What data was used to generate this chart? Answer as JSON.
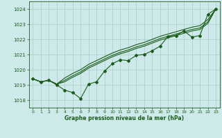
{
  "title": "Graphe pression niveau de la mer (hPa)",
  "bg_color": "#cde9e9",
  "grid_color": "#b0d0d0",
  "line_color": "#1a5c1a",
  "xlim": [
    -0.5,
    23.5
  ],
  "ylim": [
    1017.5,
    1024.5
  ],
  "yticks": [
    1018,
    1019,
    1020,
    1021,
    1022,
    1023,
    1024
  ],
  "xticks": [
    0,
    1,
    2,
    3,
    4,
    5,
    6,
    7,
    8,
    9,
    10,
    11,
    12,
    13,
    14,
    15,
    16,
    17,
    18,
    19,
    20,
    21,
    22,
    23
  ],
  "series": {
    "line_jagged": [
      1019.4,
      1019.2,
      1019.3,
      1019.0,
      1018.65,
      1018.5,
      1018.1,
      1019.05,
      1019.2,
      1019.9,
      1020.4,
      1020.65,
      1020.6,
      1020.95,
      1021.0,
      1021.25,
      1021.55,
      1022.2,
      1022.25,
      1022.55,
      1022.15,
      1022.25,
      1023.65,
      1024.0
    ],
    "line_smooth1": [
      1019.4,
      1019.2,
      1019.3,
      1019.05,
      1019.2,
      1019.5,
      1019.75,
      1020.1,
      1020.35,
      1020.6,
      1020.85,
      1021.05,
      1021.2,
      1021.4,
      1021.55,
      1021.75,
      1021.95,
      1022.1,
      1022.25,
      1022.4,
      1022.55,
      1022.65,
      1023.05,
      1024.0
    ],
    "line_smooth2": [
      1019.4,
      1019.2,
      1019.3,
      1019.05,
      1019.3,
      1019.6,
      1019.85,
      1020.2,
      1020.45,
      1020.7,
      1020.95,
      1021.15,
      1021.3,
      1021.5,
      1021.65,
      1021.85,
      1022.05,
      1022.2,
      1022.35,
      1022.5,
      1022.65,
      1022.75,
      1023.15,
      1024.0
    ],
    "line_smooth3": [
      1019.4,
      1019.2,
      1019.3,
      1019.05,
      1019.45,
      1019.75,
      1020.0,
      1020.35,
      1020.6,
      1020.85,
      1021.1,
      1021.3,
      1021.45,
      1021.65,
      1021.8,
      1022.0,
      1022.2,
      1022.35,
      1022.5,
      1022.65,
      1022.8,
      1022.9,
      1023.3,
      1024.0
    ]
  }
}
